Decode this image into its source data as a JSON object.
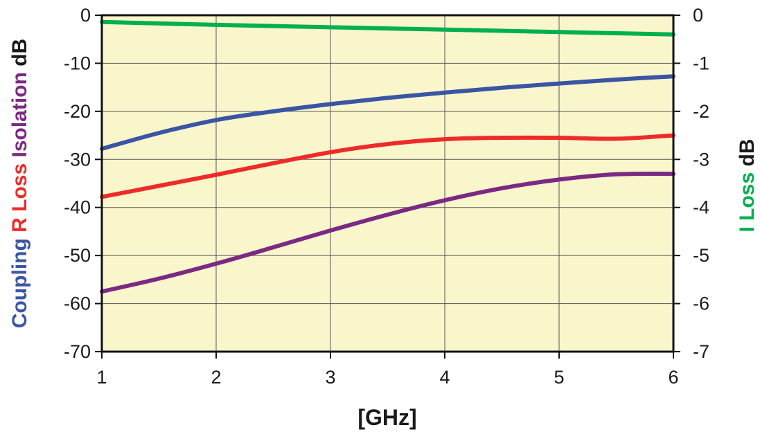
{
  "chart_data": {
    "type": "line",
    "xlabel": "[GHz]",
    "xlim": [
      1,
      6
    ],
    "x_ticks": [
      "1",
      "2",
      "3",
      "4",
      "5",
      "6"
    ],
    "grid": true,
    "plot_background": "#faf6cc",
    "y_left": {
      "range": [
        -70,
        0
      ],
      "ticks": [
        "0",
        "-10",
        "-20",
        "-30",
        "-40",
        "-50",
        "-60",
        "-70"
      ],
      "label_parts": [
        {
          "text": "Coupling",
          "color": "#3a55a4"
        },
        {
          "text": "R Loss",
          "color": "#ee2b2b"
        },
        {
          "text": "Isolation",
          "color": "#7b2a83"
        },
        {
          "text": "dB",
          "color": "#1a1a1a"
        }
      ]
    },
    "y_right": {
      "range": [
        -7,
        0
      ],
      "ticks": [
        "0",
        "-1",
        "-2",
        "-3",
        "-4",
        "-5",
        "-6",
        "-7"
      ],
      "label_parts": [
        {
          "text": "I Loss",
          "color": "#00b04f"
        },
        {
          "text": "dB",
          "color": "#1a1a1a"
        }
      ]
    },
    "series": [
      {
        "axis": "right",
        "color": "#00b04f",
        "x": [
          1,
          2,
          3,
          4,
          5,
          6
        ],
        "y": [
          -0.14,
          -0.2,
          -0.25,
          -0.3,
          -0.35,
          -0.4
        ]
      },
      {
        "axis": "left",
        "color": "#3a55a4",
        "x": [
          1,
          1.5,
          2,
          2.5,
          3,
          3.5,
          4,
          4.5,
          5,
          5.5,
          6
        ],
        "y": [
          -27.8,
          -24.5,
          -21.8,
          -20,
          -18.5,
          -17.2,
          -16.1,
          -15.1,
          -14.2,
          -13.4,
          -12.7
        ]
      },
      {
        "axis": "left",
        "color": "#ee2b2b",
        "x": [
          1,
          1.5,
          2,
          2.5,
          3,
          3.5,
          4,
          4.5,
          5,
          5.5,
          6
        ],
        "y": [
          -37.8,
          -35.5,
          -33.2,
          -30.8,
          -28.5,
          -26.8,
          -25.8,
          -25.5,
          -25.5,
          -25.7,
          -25
        ]
      },
      {
        "axis": "left",
        "color": "#7b2a83",
        "x": [
          1,
          1.5,
          2,
          2.5,
          3,
          3.5,
          4,
          4.5,
          5,
          5.5,
          6
        ],
        "y": [
          -57.5,
          -54.8,
          -51.7,
          -48.3,
          -44.8,
          -41.5,
          -38.5,
          -36,
          -34.2,
          -33.1,
          -33
        ]
      }
    ]
  }
}
